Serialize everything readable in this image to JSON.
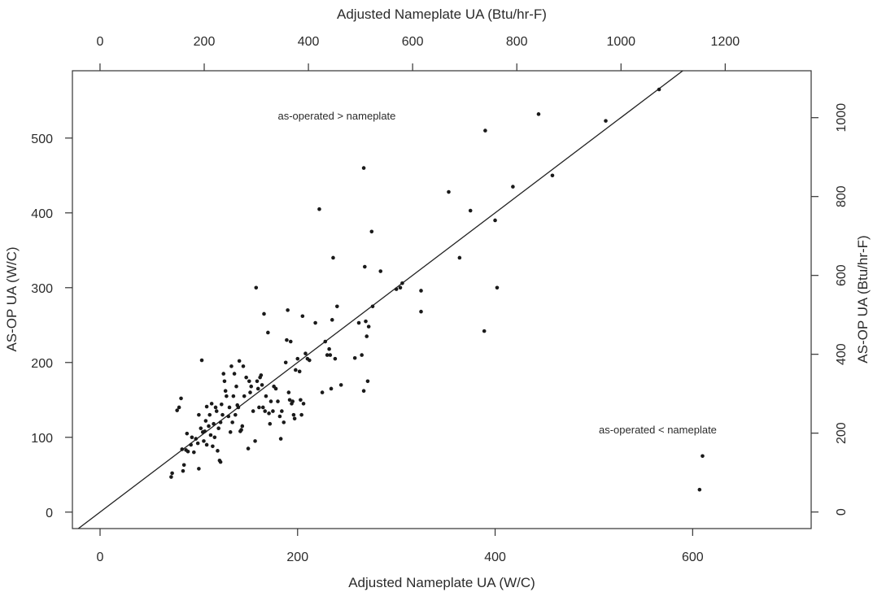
{
  "chart_data": {
    "type": "scatter",
    "title": "",
    "xlabel": "Adjusted Nameplate UA (W/C)",
    "ylabel": "AS-OP UA (W/C)",
    "x2label": "Adjusted Nameplate UA (Btu/hr-F)",
    "y2label": "AS-OP UA (Btu/hr-F)",
    "xlim": [
      -28,
      720
    ],
    "ylim": [
      -22,
      590
    ],
    "x2lim": [
      -53,
      1365
    ],
    "y2lim": [
      -42,
      1119
    ],
    "xticks": [
      0,
      200,
      400,
      600
    ],
    "yticks": [
      0,
      100,
      200,
      300,
      400,
      500
    ],
    "x2ticks": [
      0,
      200,
      400,
      600,
      800,
      1000,
      1200
    ],
    "y2ticks": [
      0,
      200,
      400,
      600,
      800,
      1000
    ],
    "grid": false,
    "reference_line": {
      "slope": 1,
      "intercept": 0
    },
    "annotations": [
      {
        "text": "as-operated > nameplate",
        "x": 180,
        "y": 525
      },
      {
        "text": "as-operated < nameplate",
        "x": 505,
        "y": 105
      }
    ],
    "series": [
      {
        "points": [
          [
            72,
            47
          ],
          [
            73,
            52
          ],
          [
            78,
            136
          ],
          [
            80,
            140
          ],
          [
            82,
            152
          ],
          [
            83,
            84
          ],
          [
            84,
            55
          ],
          [
            85,
            63
          ],
          [
            87,
            83
          ],
          [
            88,
            105
          ],
          [
            89,
            81
          ],
          [
            92,
            90
          ],
          [
            93,
            100
          ],
          [
            95,
            80
          ],
          [
            97,
            98
          ],
          [
            99,
            92
          ],
          [
            100,
            130
          ],
          [
            100,
            58
          ],
          [
            102,
            112
          ],
          [
            103,
            203
          ],
          [
            104,
            107
          ],
          [
            105,
            95
          ],
          [
            106,
            108
          ],
          [
            107,
            122
          ],
          [
            108,
            90
          ],
          [
            108,
            141
          ],
          [
            110,
            115
          ],
          [
            111,
            130
          ],
          [
            112,
            103
          ],
          [
            113,
            145
          ],
          [
            114,
            88
          ],
          [
            115,
            118
          ],
          [
            116,
            100
          ],
          [
            117,
            140
          ],
          [
            118,
            135
          ],
          [
            119,
            82
          ],
          [
            120,
            112
          ],
          [
            121,
            69
          ],
          [
            122,
            67
          ],
          [
            122,
            120
          ],
          [
            123,
            144
          ],
          [
            124,
            130
          ],
          [
            125,
            185
          ],
          [
            126,
            175
          ],
          [
            127,
            162
          ],
          [
            128,
            155
          ],
          [
            130,
            128
          ],
          [
            131,
            140
          ],
          [
            132,
            107
          ],
          [
            133,
            195
          ],
          [
            134,
            120
          ],
          [
            135,
            155
          ],
          [
            136,
            185
          ],
          [
            137,
            130
          ],
          [
            138,
            168
          ],
          [
            139,
            143
          ],
          [
            140,
            140
          ],
          [
            141,
            202
          ],
          [
            142,
            108
          ],
          [
            143,
            110
          ],
          [
            144,
            115
          ],
          [
            145,
            195
          ],
          [
            146,
            155
          ],
          [
            148,
            180
          ],
          [
            150,
            85
          ],
          [
            151,
            175
          ],
          [
            152,
            160
          ],
          [
            153,
            168
          ],
          [
            155,
            135
          ],
          [
            157,
            95
          ],
          [
            158,
            300
          ],
          [
            159,
            175
          ],
          [
            160,
            165
          ],
          [
            161,
            140
          ],
          [
            162,
            180
          ],
          [
            163,
            183
          ],
          [
            164,
            170
          ],
          [
            165,
            140
          ],
          [
            166,
            265
          ],
          [
            167,
            135
          ],
          [
            168,
            155
          ],
          [
            170,
            240
          ],
          [
            171,
            132
          ],
          [
            172,
            118
          ],
          [
            173,
            148
          ],
          [
            175,
            135
          ],
          [
            176,
            168
          ],
          [
            178,
            165
          ],
          [
            180,
            148
          ],
          [
            182,
            128
          ],
          [
            183,
            98
          ],
          [
            184,
            135
          ],
          [
            186,
            120
          ],
          [
            188,
            200
          ],
          [
            189,
            230
          ],
          [
            190,
            270
          ],
          [
            191,
            160
          ],
          [
            192,
            150
          ],
          [
            193,
            228
          ],
          [
            194,
            145
          ],
          [
            195,
            148
          ],
          [
            196,
            130
          ],
          [
            197,
            125
          ],
          [
            198,
            190
          ],
          [
            200,
            205
          ],
          [
            202,
            188
          ],
          [
            203,
            150
          ],
          [
            204,
            130
          ],
          [
            205,
            262
          ],
          [
            206,
            145
          ],
          [
            208,
            212
          ],
          [
            210,
            205
          ],
          [
            212,
            203
          ],
          [
            218,
            253
          ],
          [
            222,
            405
          ],
          [
            225,
            160
          ],
          [
            228,
            228
          ],
          [
            230,
            210
          ],
          [
            232,
            218
          ],
          [
            233,
            210
          ],
          [
            234,
            165
          ],
          [
            235,
            257
          ],
          [
            236,
            340
          ],
          [
            238,
            205
          ],
          [
            240,
            275
          ],
          [
            244,
            170
          ],
          [
            258,
            206
          ],
          [
            262,
            253
          ],
          [
            265,
            210
          ],
          [
            267,
            460
          ],
          [
            267,
            162
          ],
          [
            268,
            328
          ],
          [
            269,
            255
          ],
          [
            270,
            235
          ],
          [
            271,
            175
          ],
          [
            272,
            248
          ],
          [
            275,
            375
          ],
          [
            276,
            275
          ],
          [
            284,
            322
          ],
          [
            300,
            298
          ],
          [
            304,
            300
          ],
          [
            306,
            306
          ],
          [
            325,
            296
          ],
          [
            325,
            268
          ],
          [
            353,
            428
          ],
          [
            364,
            340
          ],
          [
            375,
            403
          ],
          [
            389,
            242
          ],
          [
            390,
            510
          ],
          [
            400,
            390
          ],
          [
            402,
            300
          ],
          [
            418,
            435
          ],
          [
            444,
            532
          ],
          [
            458,
            450
          ],
          [
            512,
            523
          ],
          [
            566,
            565
          ],
          [
            610,
            75
          ],
          [
            607,
            30
          ]
        ]
      }
    ]
  }
}
